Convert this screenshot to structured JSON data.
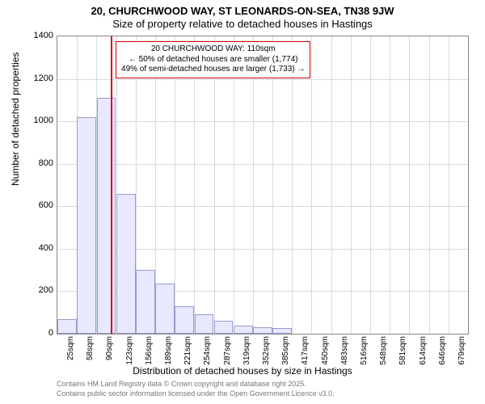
{
  "chart": {
    "type": "histogram",
    "title_line1": "20, CHURCHWOOD WAY, ST LEONARDS-ON-SEA, TN38 9JW",
    "title_line2": "Size of property relative to detached houses in Hastings",
    "ylabel": "Number of detached properties",
    "xlabel": "Distribution of detached houses by size in Hastings",
    "title_fontsize": 13,
    "label_fontsize": 12,
    "tick_fontsize": 11,
    "background_color": "#ffffff",
    "grid_color": "#d8d8e4",
    "border_color": "#888888",
    "bar_fill": "#e8e8ff",
    "bar_border": "#9a9ad0",
    "marker_color": "#d00000",
    "ylim": [
      0,
      1400
    ],
    "ytick_step": 200,
    "yticks": [
      0,
      200,
      400,
      600,
      800,
      1000,
      1200,
      1400
    ],
    "x_categories": [
      "25sqm",
      "58sqm",
      "90sqm",
      "123sqm",
      "156sqm",
      "189sqm",
      "221sqm",
      "254sqm",
      "287sqm",
      "319sqm",
      "352sqm",
      "385sqm",
      "417sqm",
      "450sqm",
      "483sqm",
      "516sqm",
      "548sqm",
      "581sqm",
      "614sqm",
      "646sqm",
      "679sqm"
    ],
    "values": [
      70,
      1020,
      1110,
      660,
      300,
      235,
      130,
      90,
      60,
      40,
      30,
      25,
      0,
      0,
      0,
      0,
      0,
      0,
      0,
      0,
      0
    ],
    "marker_value_sqm": 110,
    "annotation": {
      "line1": "20 CHURCHWOOD WAY: 110sqm",
      "line2": "← 50% of detached houses are smaller (1,774)",
      "line3": "49% of semi-detached houses are larger (1,733) →",
      "border_color": "#d00000",
      "fontsize": 10
    },
    "footer_line1": "Contains HM Land Registry data © Crown copyright and database right 2025.",
    "footer_line2": "Contains public sector information licensed under the Open Government Licence v3.0.",
    "footer_color": "#777777",
    "footer_fontsize": 9
  }
}
